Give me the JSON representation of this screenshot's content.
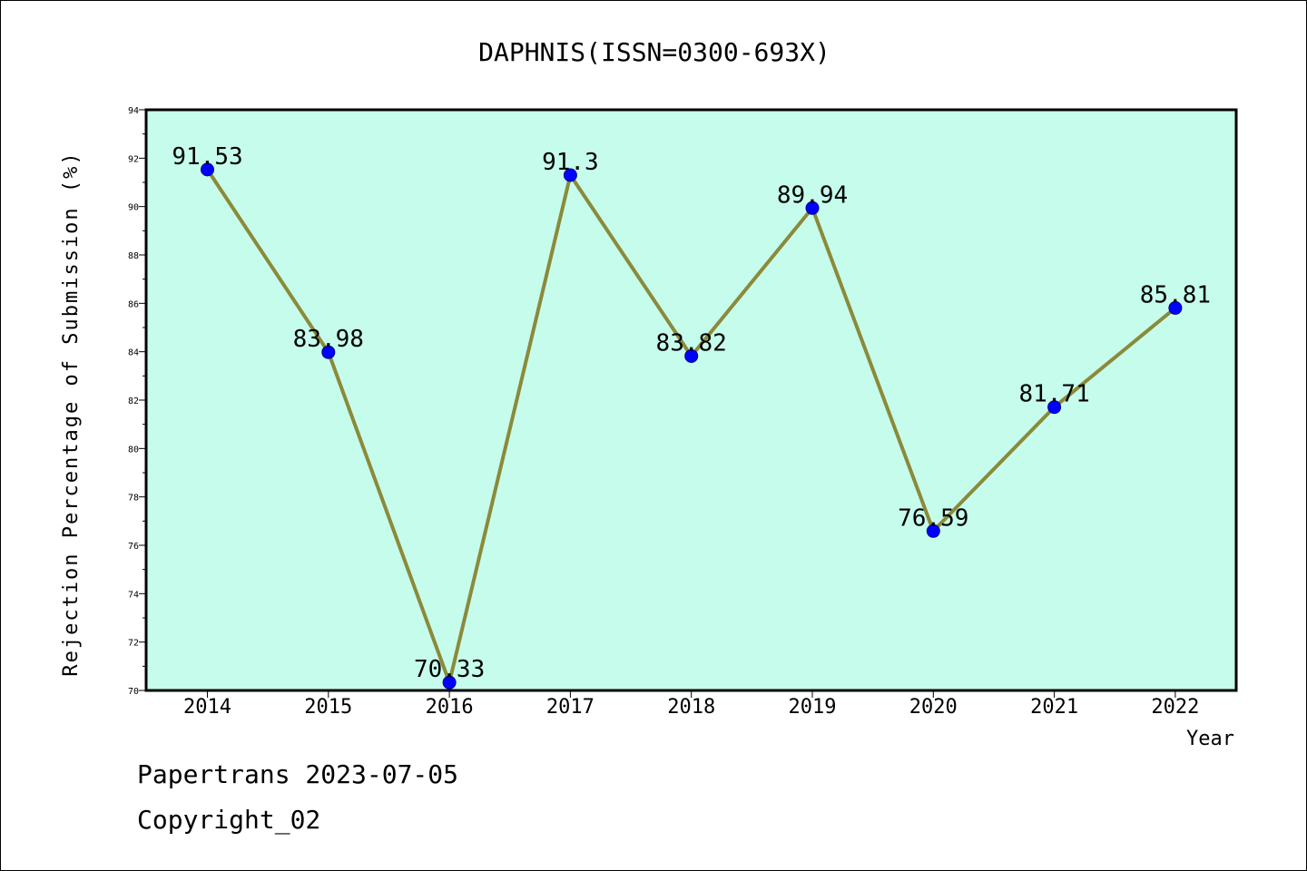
{
  "chart_data": {
    "type": "line",
    "title": "DAPHNIS(ISSN=0300-693X)",
    "xlabel": "Year",
    "ylabel": "Rejection Percentage of Submission (%)",
    "categories": [
      "2014",
      "2015",
      "2016",
      "2017",
      "2018",
      "2019",
      "2020",
      "2021",
      "2022"
    ],
    "values": [
      91.53,
      83.98,
      70.33,
      91.3,
      83.82,
      89.94,
      76.59,
      81.71,
      85.81
    ],
    "data_labels": [
      "91.53",
      "83.98",
      "70.33",
      "91.3",
      "83.82",
      "89.94",
      "76.59",
      "81.71",
      "85.81"
    ],
    "ylim": [
      70,
      94
    ],
    "yticks": [
      "70",
      "72",
      "74",
      "76",
      "78",
      "80",
      "82",
      "84",
      "86",
      "88",
      "90",
      "92",
      "94"
    ],
    "grid": false,
    "colors": {
      "plot_background": "#c6fcec",
      "line": "#8b8a3a",
      "marker": "#0000ff"
    }
  },
  "footer": {
    "line1": "Papertrans 2023-07-05",
    "line2": "Copyright_02"
  }
}
